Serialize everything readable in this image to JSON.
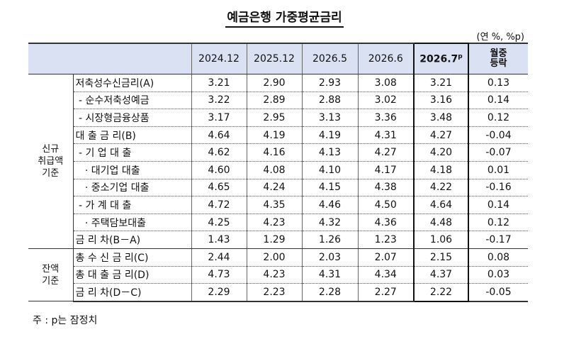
{
  "title": "예금은행 가중평균금리",
  "unit": "(연 %, %p)",
  "columns": {
    "c1": "2024.12",
    "c2": "2025.12",
    "c3": "2026.5",
    "c4": "2026.6",
    "c5": "2026.7",
    "c5_sup": "p",
    "mom_line1": "월중",
    "mom_line2": "등락"
  },
  "groups": {
    "new_line1": "신규",
    "new_line2": "취급액",
    "new_line3": "기준",
    "bal_line1": "잔액",
    "bal_line2": "기준"
  },
  "rows": [
    {
      "label": "저축성수신금리(A)",
      "v": [
        "3.21",
        "2.90",
        "2.93",
        "3.08",
        "3.21",
        "0.13"
      ]
    },
    {
      "label": " - 순수저축성예금",
      "v": [
        "3.22",
        "2.89",
        "2.88",
        "3.02",
        "3.16",
        "0.14"
      ]
    },
    {
      "label": " - 시장형금융상품",
      "v": [
        "3.17",
        "2.95",
        "3.13",
        "3.36",
        "3.48",
        "0.12"
      ]
    },
    {
      "label": "대 출 금 리(B)",
      "v": [
        "4.64",
        "4.19",
        "4.19",
        "4.31",
        "4.27",
        "-0.04"
      ]
    },
    {
      "label": " - 기 업 대 출",
      "v": [
        "4.62",
        "4.16",
        "4.13",
        "4.27",
        "4.20",
        "-0.07"
      ]
    },
    {
      "label": "   · 대기업 대출",
      "v": [
        "4.60",
        "4.08",
        "4.10",
        "4.17",
        "4.18",
        "0.01"
      ]
    },
    {
      "label": "   · 중소기업 대출",
      "v": [
        "4.65",
        "4.24",
        "4.15",
        "4.38",
        "4.22",
        "-0.16"
      ]
    },
    {
      "label": " - 가 계 대 출",
      "v": [
        "4.72",
        "4.35",
        "4.46",
        "4.50",
        "4.64",
        "0.14"
      ]
    },
    {
      "label": "   · 주택담보대출",
      "v": [
        "4.25",
        "4.23",
        "4.32",
        "4.36",
        "4.48",
        "0.12"
      ]
    },
    {
      "label": "금 리 차(B－A)",
      "v": [
        "1.43",
        "1.29",
        "1.26",
        "1.23",
        "1.06",
        "-0.17"
      ]
    },
    {
      "label": "총 수 신 금 리(C)",
      "v": [
        "2.44",
        "2.00",
        "2.03",
        "2.07",
        "2.15",
        "0.08"
      ]
    },
    {
      "label": "총 대 출 금 리(D)",
      "v": [
        "4.73",
        "4.23",
        "4.31",
        "4.34",
        "4.37",
        "0.03"
      ]
    },
    {
      "label": "금 리 차(D－C)",
      "v": [
        "2.29",
        "2.23",
        "2.28",
        "2.27",
        "2.22",
        "-0.05"
      ]
    }
  ],
  "note": "주 : p는 잠정치"
}
